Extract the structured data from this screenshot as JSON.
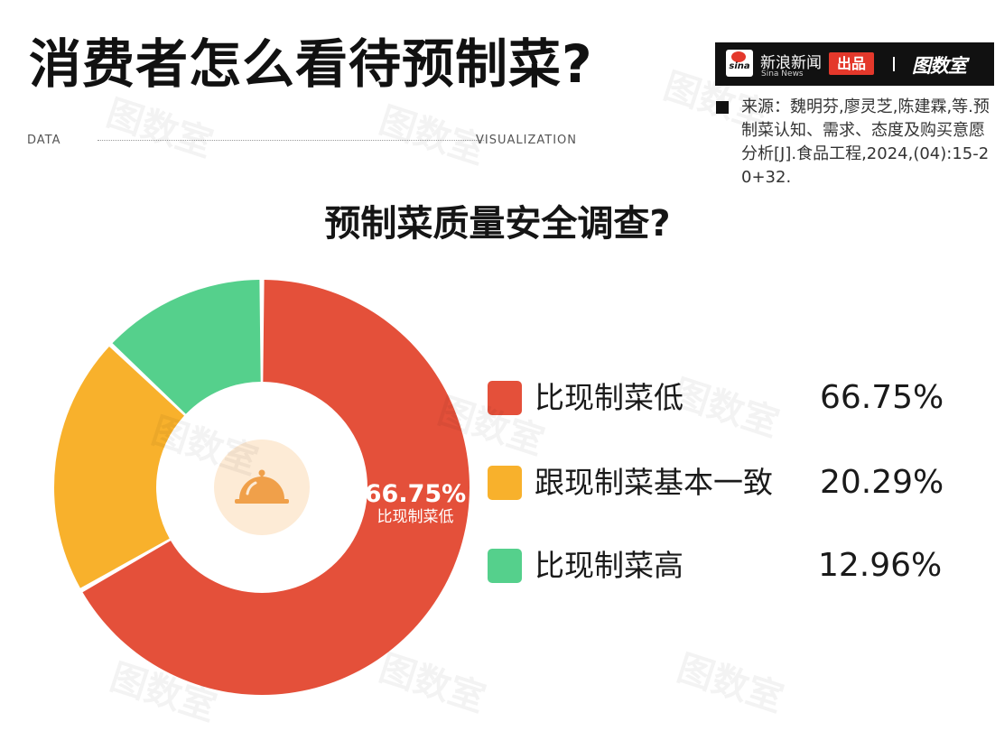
{
  "header": {
    "title": "消费者怎么看待预制菜?",
    "data_left": "DATA",
    "data_right": "VISUALIZATION"
  },
  "brand": {
    "logo_text": "sina",
    "name_cn": "新浪新闻",
    "name_en": "Sina News",
    "badge": "出品",
    "logo2": "图数室",
    "badge_color": "#e4382b"
  },
  "source": {
    "text": "来源：魏明芬,廖灵芝,陈建霖,等.预制菜认知、需求、态度及购买意愿分析[J].食品工程,2024,(04):15-20+32."
  },
  "chart_data": {
    "type": "pie",
    "style": "donut",
    "title": "预制菜质量安全调查?",
    "categories": [
      "比现制菜低",
      "跟现制菜基本一致",
      "比现制菜高"
    ],
    "values": [
      66.75,
      20.29,
      12.96
    ],
    "value_labels": [
      "66.75%",
      "20.29%",
      "12.96%"
    ],
    "colors": [
      "#e4503a",
      "#f8b12c",
      "#55d08c"
    ],
    "center_icon": "serving-cloche-icon",
    "slice_annotation": {
      "value": "66.75%",
      "label": "比现制菜低"
    },
    "legend_position": "right"
  },
  "watermark": {
    "text": "图数室"
  }
}
